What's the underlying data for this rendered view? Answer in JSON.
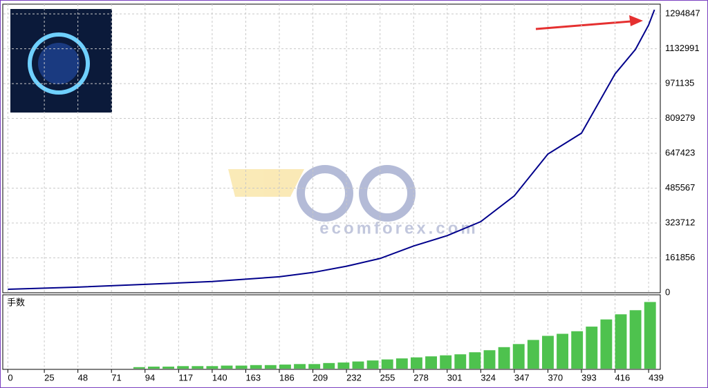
{
  "watermark": "ecomforex.com",
  "chart_data": [
    {
      "type": "line",
      "color": "#00008b",
      "grid": true,
      "x": [
        0,
        48,
        94,
        140,
        186,
        209,
        232,
        255,
        278,
        301,
        324,
        347,
        370,
        393,
        416,
        430,
        439,
        443
      ],
      "values": [
        16000,
        26000,
        39000,
        52000,
        74000,
        94000,
        123000,
        159000,
        217000,
        265000,
        330000,
        450000,
        644000,
        741000,
        1016000,
        1130000,
        1243000,
        1314000
      ],
      "xlim": [
        -3,
        447
      ],
      "ylim": [
        0,
        1340000
      ],
      "xticks": [
        0,
        25,
        48,
        71,
        94,
        117,
        140,
        163,
        186,
        209,
        232,
        255,
        278,
        301,
        324,
        347,
        370,
        393,
        416,
        439
      ],
      "yticks": [
        0,
        161856,
        323712,
        485567,
        647423,
        809279,
        971135,
        1132991,
        1294847
      ]
    },
    {
      "type": "bar",
      "title": "手数",
      "color": "#4ec24e",
      "x": [
        0,
        10,
        20,
        30,
        40,
        50,
        60,
        70,
        80,
        90,
        100,
        110,
        120,
        130,
        140,
        150,
        160,
        170,
        180,
        190,
        200,
        210,
        220,
        230,
        240,
        250,
        260,
        270,
        280,
        290,
        300,
        310,
        320,
        330,
        340,
        350,
        360,
        370,
        380,
        390,
        400,
        410,
        420,
        430,
        440
      ],
      "values": [
        0,
        0,
        0,
        0,
        0,
        0,
        0,
        0,
        0,
        3,
        4,
        4,
        5,
        5,
        5,
        6,
        6,
        7,
        7,
        8,
        9,
        9,
        11,
        12,
        14,
        16,
        18,
        20,
        22,
        24,
        26,
        28,
        32,
        36,
        42,
        48,
        56,
        64,
        68,
        73,
        82,
        96,
        106,
        114,
        130
      ],
      "xlim": [
        -3,
        447
      ],
      "ylim": [
        0,
        140
      ]
    }
  ]
}
